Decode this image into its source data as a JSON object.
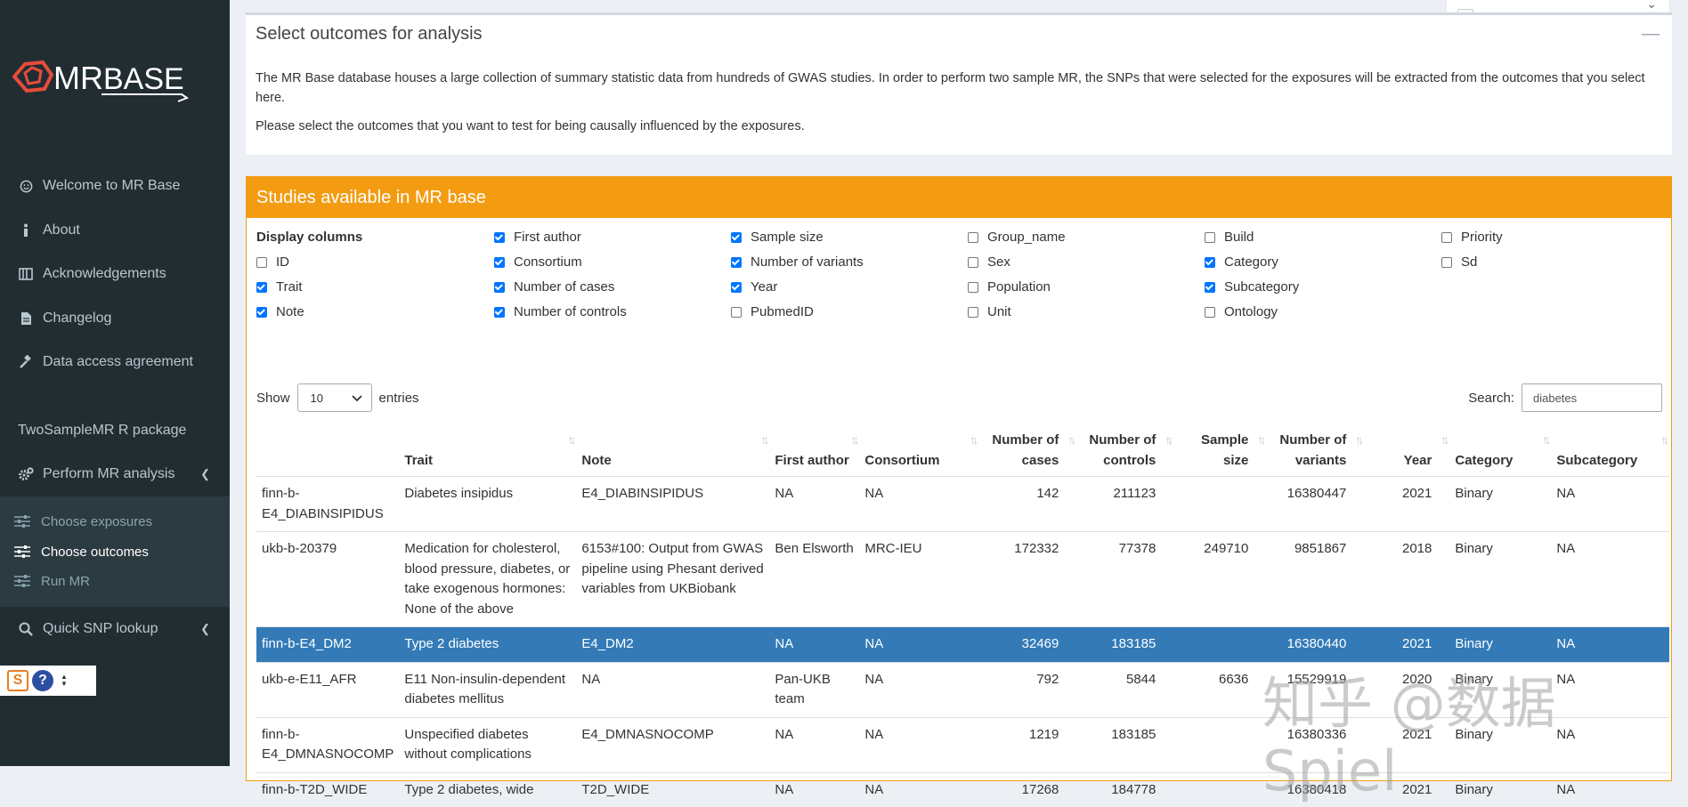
{
  "sidebar": {
    "logo_text": "MR BASE",
    "items": [
      {
        "label": "Welcome to MR Base",
        "icon": "smile-icon"
      },
      {
        "label": "About",
        "icon": "info-icon"
      },
      {
        "label": "Acknowledgements",
        "icon": "book-icon"
      },
      {
        "label": "Changelog",
        "icon": "file-icon"
      },
      {
        "label": "Data access agreement",
        "icon": "gavel-icon"
      }
    ],
    "package_label": "TwoSampleMR R package",
    "perform_label": "Perform MR analysis",
    "sub_items": [
      {
        "label": "Choose exposures"
      },
      {
        "label": "Choose outcomes"
      },
      {
        "label": "Run MR"
      }
    ],
    "quick_label": "Quick SNP lookup"
  },
  "outcomes_box": {
    "title": "Select outcomes for analysis",
    "paragraph1": "The MR Base database houses a large collection of summary statistic data from hundreds of GWAS studies. In order to perform two sample MR, the SNPs that were selected for the exposures will be extracted from the outcomes that you select here.",
    "paragraph2": "Please select the outcomes that you want to test for being causally influenced by the exposures."
  },
  "studies": {
    "header": "Studies available in MR base",
    "display_columns_label": "Display columns",
    "columns_options": [
      {
        "label": "ID",
        "checked": false
      },
      {
        "label": "Trait",
        "checked": true
      },
      {
        "label": "Note",
        "checked": true
      },
      {
        "label": "First author",
        "checked": true
      },
      {
        "label": "Consortium",
        "checked": true
      },
      {
        "label": "Number of cases",
        "checked": true
      },
      {
        "label": "Number of controls",
        "checked": true
      },
      {
        "label": "Sample size",
        "checked": true
      },
      {
        "label": "Number of variants",
        "checked": true
      },
      {
        "label": "Year",
        "checked": true
      },
      {
        "label": "PubmedID",
        "checked": false
      },
      {
        "label": "Group_name",
        "checked": false
      },
      {
        "label": "Sex",
        "checked": false
      },
      {
        "label": "Population",
        "checked": false
      },
      {
        "label": "Unit",
        "checked": false
      },
      {
        "label": "Build",
        "checked": false
      },
      {
        "label": "Category",
        "checked": true
      },
      {
        "label": "Subcategory",
        "checked": true
      },
      {
        "label": "Ontology",
        "checked": false
      },
      {
        "label": "Priority",
        "checked": false
      },
      {
        "label": "Sd",
        "checked": false
      }
    ],
    "show_label": "Show",
    "entries_value": "10",
    "entries_label": "entries",
    "search_label": "Search:",
    "search_value": "diabetes",
    "table_headers": [
      "",
      "Trait",
      "Note",
      "First author",
      "Consortium",
      "Number of cases",
      "Number of controls",
      "Sample size",
      "Number of variants",
      "Year",
      "Category",
      "Subcategory"
    ],
    "rows": [
      [
        "finn-b-E4_DIABINSIPIDUS",
        "Diabetes insipidus",
        "E4_DIABINSIPIDUS",
        "NA",
        "NA",
        "142",
        "211123",
        "",
        "16380447",
        "2021",
        "Binary",
        "NA"
      ],
      [
        "ukb-b-20379",
        "Medication for cholesterol, blood pressure, diabetes, or take exogenous hormones: None of the above",
        "6153#100: Output from GWAS pipeline using Phesant derived variables from UKBiobank",
        "Ben Elsworth",
        "MRC-IEU",
        "172332",
        "77378",
        "249710",
        "9851867",
        "2018",
        "Binary",
        "NA"
      ],
      [
        "finn-b-E4_DM2",
        "Type 2 diabetes",
        "E4_DM2",
        "NA",
        "NA",
        "32469",
        "183185",
        "",
        "16380440",
        "2021",
        "Binary",
        "NA"
      ],
      [
        "ukb-e-E11_AFR",
        "E11 Non-insulin-dependent diabetes mellitus",
        "NA",
        "Pan-UKB team",
        "NA",
        "792",
        "5844",
        "6636",
        "15529919",
        "2020",
        "Binary",
        "NA"
      ],
      [
        "finn-b-E4_DMNASNOCOMP",
        "Unspecified diabetes without complications",
        "E4_DMNASNOCOMP",
        "NA",
        "NA",
        "1219",
        "183185",
        "",
        "16380336",
        "2021",
        "Binary",
        "NA"
      ],
      [
        "finn-b-T2D_WIDE",
        "Type 2 diabetes, wide",
        "T2D_WIDE",
        "NA",
        "NA",
        "17268",
        "184778",
        "",
        "16380418",
        "2021",
        "Binary",
        "NA"
      ]
    ],
    "selected_row": 2
  },
  "watermark": "知乎 @数据Spiel"
}
